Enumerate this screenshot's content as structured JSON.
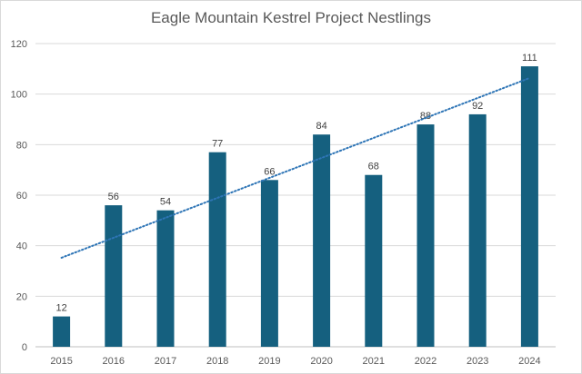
{
  "chart_data": {
    "type": "bar",
    "title": "Eagle Mountain Kestrel Project Nestlings",
    "categories": [
      "2015",
      "2016",
      "2017",
      "2018",
      "2019",
      "2020",
      "2021",
      "2022",
      "2023",
      "2024"
    ],
    "series": [
      {
        "values": [
          12,
          56,
          54,
          77,
          66,
          84,
          68,
          88,
          92,
          111
        ],
        "color": "#15607f",
        "trendline": {
          "type": "linear",
          "style": "dotted",
          "color": "#2e75b6"
        }
      }
    ],
    "data_labels": true,
    "ylim": [
      0,
      120
    ],
    "yticks": [
      0,
      20,
      40,
      60,
      80,
      100,
      120
    ],
    "grid": true,
    "legend": "none",
    "xlabel": "",
    "ylabel": ""
  }
}
